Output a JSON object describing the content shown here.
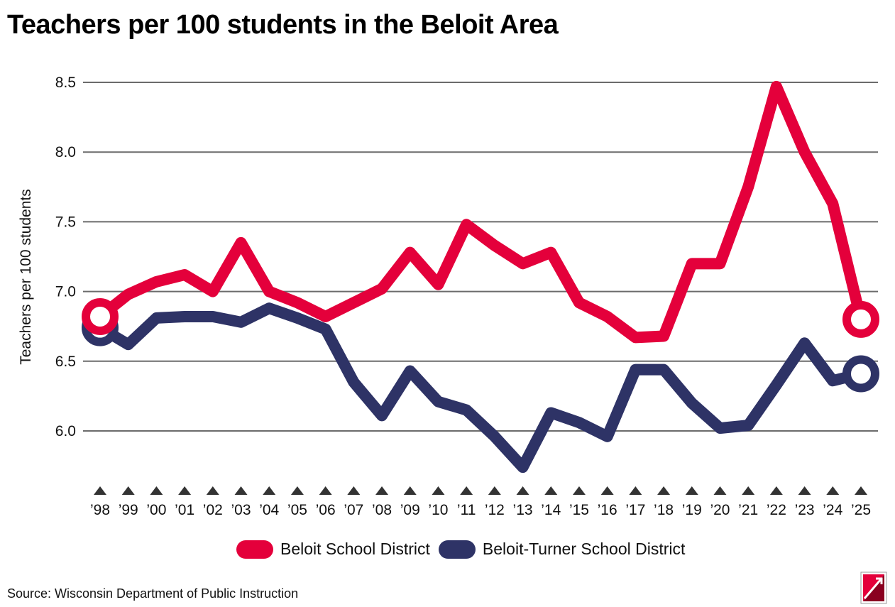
{
  "title": "Teachers per 100 students in the Beloit Area",
  "source": "Source: Wisconsin Department of Public Instruction",
  "colors": {
    "beloit": "#e4003b",
    "beloit_turner": "#2e3366",
    "grid": "#6b6b6b",
    "marker": "#333333"
  },
  "chart_data": {
    "type": "line",
    "ylabel": "Teachers per 100 students",
    "xlabel": "",
    "ylim": [
      5.75,
      8.6
    ],
    "yticks": [
      6.0,
      6.5,
      7.0,
      7.5,
      8.0,
      8.5
    ],
    "ytick_labels": [
      "6.0",
      "6.5",
      "7.0",
      "7.5",
      "8.0",
      "8.5"
    ],
    "grid": true,
    "legend_position": "bottom",
    "categories": [
      "’98",
      "’99",
      "’00",
      "’01",
      "’02",
      "’03",
      "’04",
      "’05",
      "’06",
      "’07",
      "’08",
      "’09",
      "’10",
      "’11",
      "’12",
      "’13",
      "’14",
      "’15",
      "’16",
      "’17",
      "’18",
      "’19",
      "’20",
      "’21",
      "’22",
      "’23",
      "’24",
      "’25"
    ],
    "series": [
      {
        "name": "Beloit School District",
        "values": [
          6.82,
          6.98,
          7.07,
          7.12,
          7.0,
          7.35,
          7.0,
          6.92,
          6.82,
          6.92,
          7.02,
          7.28,
          7.05,
          7.48,
          7.33,
          7.2,
          7.28,
          6.92,
          6.82,
          6.67,
          6.68,
          7.2,
          7.2,
          7.75,
          8.47,
          8.0,
          7.63,
          6.8
        ]
      },
      {
        "name": "Beloit-Turner School District",
        "values": [
          6.74,
          6.62,
          6.81,
          6.82,
          6.82,
          6.78,
          6.88,
          6.81,
          6.73,
          6.35,
          6.11,
          6.43,
          6.21,
          6.15,
          5.96,
          5.74,
          6.13,
          6.06,
          5.96,
          6.44,
          6.44,
          6.2,
          6.02,
          6.04,
          6.33,
          6.63,
          6.36,
          6.41
        ]
      }
    ]
  },
  "legend": {
    "items": [
      {
        "label": "Beloit School District"
      },
      {
        "label": "Beloit-Turner School District"
      }
    ]
  },
  "logo": {
    "icon": "publisher-logo-icon"
  }
}
